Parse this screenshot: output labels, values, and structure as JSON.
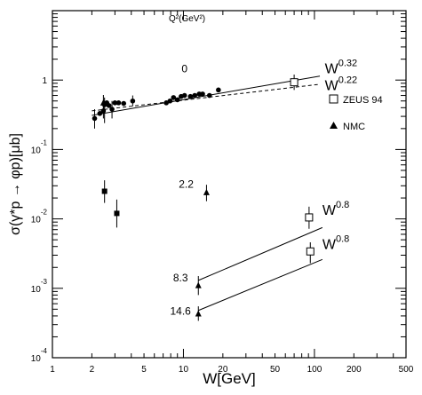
{
  "chart_data": {
    "type": "scatter",
    "xscale": "log",
    "yscale": "log",
    "xlim": [
      1,
      500
    ],
    "ylim": [
      0.0001,
      10
    ],
    "xlabel": "W[GeV]",
    "ylabel": "σ(γ*p → φp)[μb]",
    "x_ticks": [
      {
        "v": 1,
        "label": "1"
      },
      {
        "v": 2,
        "label": "2"
      },
      {
        "v": 5,
        "label": "5"
      },
      {
        "v": 10,
        "label": "10"
      },
      {
        "v": 20,
        "label": "20"
      },
      {
        "v": 50,
        "label": "50"
      },
      {
        "v": 100,
        "label": "100"
      },
      {
        "v": 200,
        "label": "200"
      },
      {
        "v": 500,
        "label": "500"
      }
    ],
    "y_ticks": [
      {
        "v": 1,
        "base": "1",
        "exp": ""
      },
      {
        "v": 0.1,
        "base": "10",
        "exp": "-1"
      },
      {
        "v": 0.01,
        "base": "10",
        "exp": "-2"
      },
      {
        "v": 0.001,
        "base": "10",
        "exp": "-3"
      },
      {
        "v": 0.0001,
        "base": "10",
        "exp": "-4"
      }
    ],
    "q2_header": "Q²(GeV²)",
    "legend": [
      {
        "marker": "open-square",
        "label": "ZEUS 94"
      },
      {
        "marker": "triangle",
        "label": "NMC"
      }
    ],
    "q2_labels": [
      {
        "text": "0",
        "x": 10.2,
        "y": 1.3
      },
      {
        "text": "2.2",
        "x": 10.5,
        "y": 0.028
      },
      {
        "text": "8.3",
        "x": 9.5,
        "y": 0.00125
      },
      {
        "text": "14.6",
        "x": 9.5,
        "y": 0.00042
      }
    ],
    "series": [
      {
        "name": "",
        "marker": "circle",
        "points": [
          {
            "x": 2.1,
            "y": 0.28,
            "lo": 0.2,
            "hi": 0.38
          },
          {
            "x": 2.3,
            "y": 0.33
          },
          {
            "x": 2.45,
            "y": 0.36,
            "lo": 0.28,
            "hi": 0.46
          },
          {
            "x": 2.5,
            "y": 0.44,
            "lo": 0.24,
            "hi": 0.56
          },
          {
            "x": 2.6,
            "y": 0.47
          },
          {
            "x": 2.7,
            "y": 0.43
          },
          {
            "x": 2.85,
            "y": 0.38,
            "lo": 0.28,
            "hi": 0.5
          },
          {
            "x": 3.0,
            "y": 0.47
          },
          {
            "x": 3.2,
            "y": 0.47
          },
          {
            "x": 3.5,
            "y": 0.46
          },
          {
            "x": 4.1,
            "y": 0.5,
            "lo": 0.42,
            "hi": 0.6
          },
          {
            "x": 7.4,
            "y": 0.47
          },
          {
            "x": 7.9,
            "y": 0.5
          },
          {
            "x": 8.4,
            "y": 0.56
          },
          {
            "x": 9.0,
            "y": 0.52
          },
          {
            "x": 9.6,
            "y": 0.58
          },
          {
            "x": 10.2,
            "y": 0.6
          },
          {
            "x": 11.3,
            "y": 0.58
          },
          {
            "x": 12.2,
            "y": 0.6
          },
          {
            "x": 13.2,
            "y": 0.63
          },
          {
            "x": 14.0,
            "y": 0.63
          },
          {
            "x": 15.8,
            "y": 0.6
          },
          {
            "x": 18.5,
            "y": 0.72
          }
        ]
      },
      {
        "name": "",
        "marker": "filled-square",
        "points": [
          {
            "x": 2.5,
            "y": 0.025,
            "lo": 0.017,
            "hi": 0.036
          },
          {
            "x": 3.1,
            "y": 0.012,
            "lo": 0.0075,
            "hi": 0.019
          }
        ]
      },
      {
        "name": "NMC",
        "marker": "triangle",
        "points": [
          {
            "x": 2.45,
            "y": 0.47,
            "lo": 0.36,
            "hi": 0.61
          },
          {
            "x": 15.0,
            "y": 0.024,
            "lo": 0.018,
            "hi": 0.031
          },
          {
            "x": 13.0,
            "y": 0.0011,
            "lo": 0.0008,
            "hi": 0.0015
          },
          {
            "x": 13.0,
            "y": 0.00043,
            "lo": 0.00034,
            "hi": 0.00055
          }
        ]
      },
      {
        "name": "ZEUS 94",
        "marker": "open-square",
        "points": [
          {
            "x": 70,
            "y": 0.93,
            "lo": 0.72,
            "hi": 1.2
          },
          {
            "x": 91,
            "y": 0.0105,
            "lo": 0.0072,
            "hi": 0.015
          },
          {
            "x": 93,
            "y": 0.0034,
            "lo": 0.0023,
            "hi": 0.0046
          }
        ]
      }
    ],
    "fits": [
      {
        "style": "solid",
        "x": [
          2.0,
          110
        ],
        "y": [
          0.31,
          1.14
        ],
        "label": "W",
        "exp": "0.32",
        "lx": 120,
        "ly": 1.25
      },
      {
        "style": "dashed",
        "x": [
          2.0,
          110
        ],
        "y": [
          0.36,
          0.87
        ],
        "label": "W",
        "exp": "0.22",
        "lx": 120,
        "ly": 0.72
      },
      {
        "style": "solid",
        "x": [
          13,
          115
        ],
        "y": [
          0.0013,
          0.0075
        ],
        "label": "W",
        "exp": "0.8",
        "lx": 115,
        "ly": 0.0115
      },
      {
        "style": "solid",
        "x": [
          13,
          115
        ],
        "y": [
          0.00048,
          0.0026
        ],
        "label": "W",
        "exp": "0.8",
        "lx": 115,
        "ly": 0.0037
      }
    ]
  }
}
